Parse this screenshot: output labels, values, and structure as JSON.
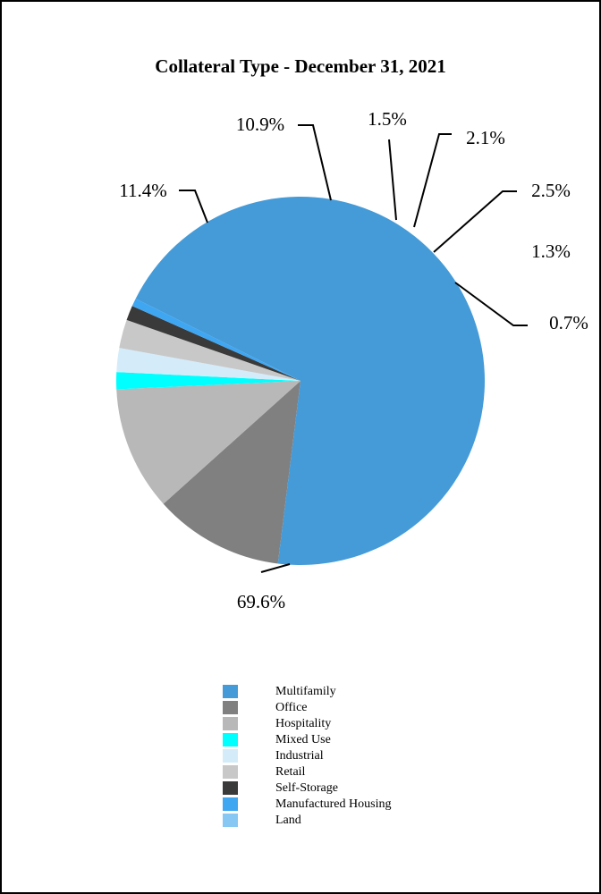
{
  "chart_data": {
    "type": "pie",
    "title": "Collateral Type - December 31, 2021",
    "slices": [
      {
        "name": "Multifamily",
        "value": 69.6,
        "label": "69.6%",
        "color": "#459bd8"
      },
      {
        "name": "Office",
        "value": 11.4,
        "label": "11.4%",
        "color": "#808080"
      },
      {
        "name": "Hospitality",
        "value": 10.9,
        "label": "10.9%",
        "color": "#b8b8b8"
      },
      {
        "name": "Mixed Use",
        "value": 1.5,
        "label": "1.5%",
        "color": "#00ffff"
      },
      {
        "name": "Industrial",
        "value": 2.1,
        "label": "2.1%",
        "color": "#d4ecfa"
      },
      {
        "name": "Retail",
        "value": 2.5,
        "label": "2.5%",
        "color": "#c8c8c8"
      },
      {
        "name": "Self-Storage",
        "value": 1.3,
        "label": "1.3%",
        "color": "#3a3a3a"
      },
      {
        "name": "Manufactured Housing",
        "value": 0.7,
        "label": "0.7%",
        "color": "#3fa6f2"
      },
      {
        "name": "Land",
        "value": 0.0,
        "label": "",
        "color": "#86c7f4"
      }
    ],
    "legend_placement": "bottom"
  }
}
